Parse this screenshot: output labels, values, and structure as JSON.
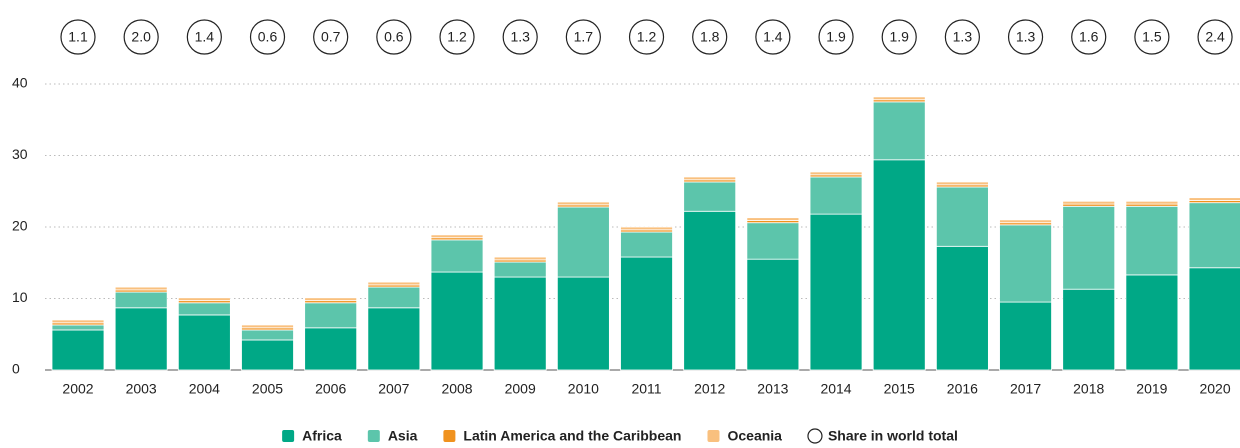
{
  "chart_data": {
    "type": "stacked_bar",
    "categories": [
      "2002",
      "2003",
      "2004",
      "2005",
      "2006",
      "2007",
      "2008",
      "2009",
      "2010",
      "2011",
      "2012",
      "2013",
      "2014",
      "2015",
      "2016",
      "2017",
      "2018",
      "2019",
      "2020"
    ],
    "series": [
      {
        "name": "Africa",
        "color": "#00a886",
        "values": [
          5.6,
          8.7,
          7.7,
          4.2,
          5.9,
          8.7,
          13.7,
          13.0,
          13.0,
          15.8,
          22.2,
          15.5,
          21.8,
          29.4,
          17.3,
          9.5,
          11.3,
          13.3,
          14.3
        ]
      },
      {
        "name": "Asia",
        "color": "#5cc5ab",
        "values": [
          0.7,
          2.2,
          1.7,
          1.4,
          3.5,
          2.9,
          4.5,
          2.1,
          9.8,
          3.5,
          4.1,
          5.1,
          5.2,
          8.1,
          8.3,
          10.8,
          11.6,
          9.6,
          9.1
        ]
      },
      {
        "name": "Latin America and the Caribbean",
        "color": "#f0921e",
        "values": [
          0.3,
          0.3,
          0.3,
          0.3,
          0.3,
          0.3,
          0.3,
          0.3,
          0.3,
          0.3,
          0.3,
          0.3,
          0.3,
          0.3,
          0.3,
          0.3,
          0.3,
          0.3,
          0.3
        ]
      },
      {
        "name": "Oceania",
        "color": "#f9c07e",
        "values": [
          0.4,
          0.4,
          0.4,
          0.4,
          0.4,
          0.4,
          0.4,
          0.4,
          0.4,
          0.4,
          0.4,
          0.4,
          0.4,
          0.4,
          0.4,
          0.4,
          0.4,
          0.4,
          0.4
        ]
      }
    ],
    "share": {
      "name": "Share in world total",
      "values": [
        1.1,
        2.0,
        1.4,
        0.6,
        0.7,
        0.6,
        1.2,
        1.3,
        1.7,
        1.2,
        1.8,
        1.4,
        1.9,
        1.9,
        1.3,
        1.3,
        1.6,
        1.5,
        2.4
      ],
      "value_labels": [
        "1.1",
        "2.0",
        "1.4",
        "0.6",
        "0.7",
        "0.6",
        "1.2",
        "1.3",
        "1.7",
        "1.2",
        "1.8",
        "1.4",
        "1.9",
        "1.9",
        "1.3",
        "1.3",
        "1.6",
        "1.5",
        "2.4"
      ]
    },
    "ylim": [
      0,
      40
    ],
    "yticks": [
      0,
      10,
      20,
      30,
      40
    ],
    "grid": true
  }
}
